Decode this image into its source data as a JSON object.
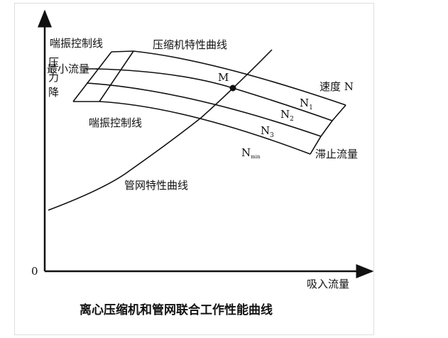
{
  "y_axis_label": "压力降",
  "x_axis_label": "吸入流量",
  "origin_label": "0",
  "caption": "离心压缩机和管网联合工作性能曲线",
  "labels": {
    "surge_control_top": "喘振控制线",
    "surge_control_bottom": "喘振控制线",
    "compressor_curve": "压缩机特性曲线",
    "min_flow": "最小流量",
    "point_m": "M",
    "speed_n": "速度 N",
    "n1": "N",
    "n1_sub": "1",
    "n2": "N",
    "n2_sub": "2",
    "n3": "N",
    "n3_sub": "3",
    "nmin": "N",
    "nmin_sub": "min",
    "stall_flow": "滞止流量",
    "network_curve": "管网特性曲线"
  }
}
